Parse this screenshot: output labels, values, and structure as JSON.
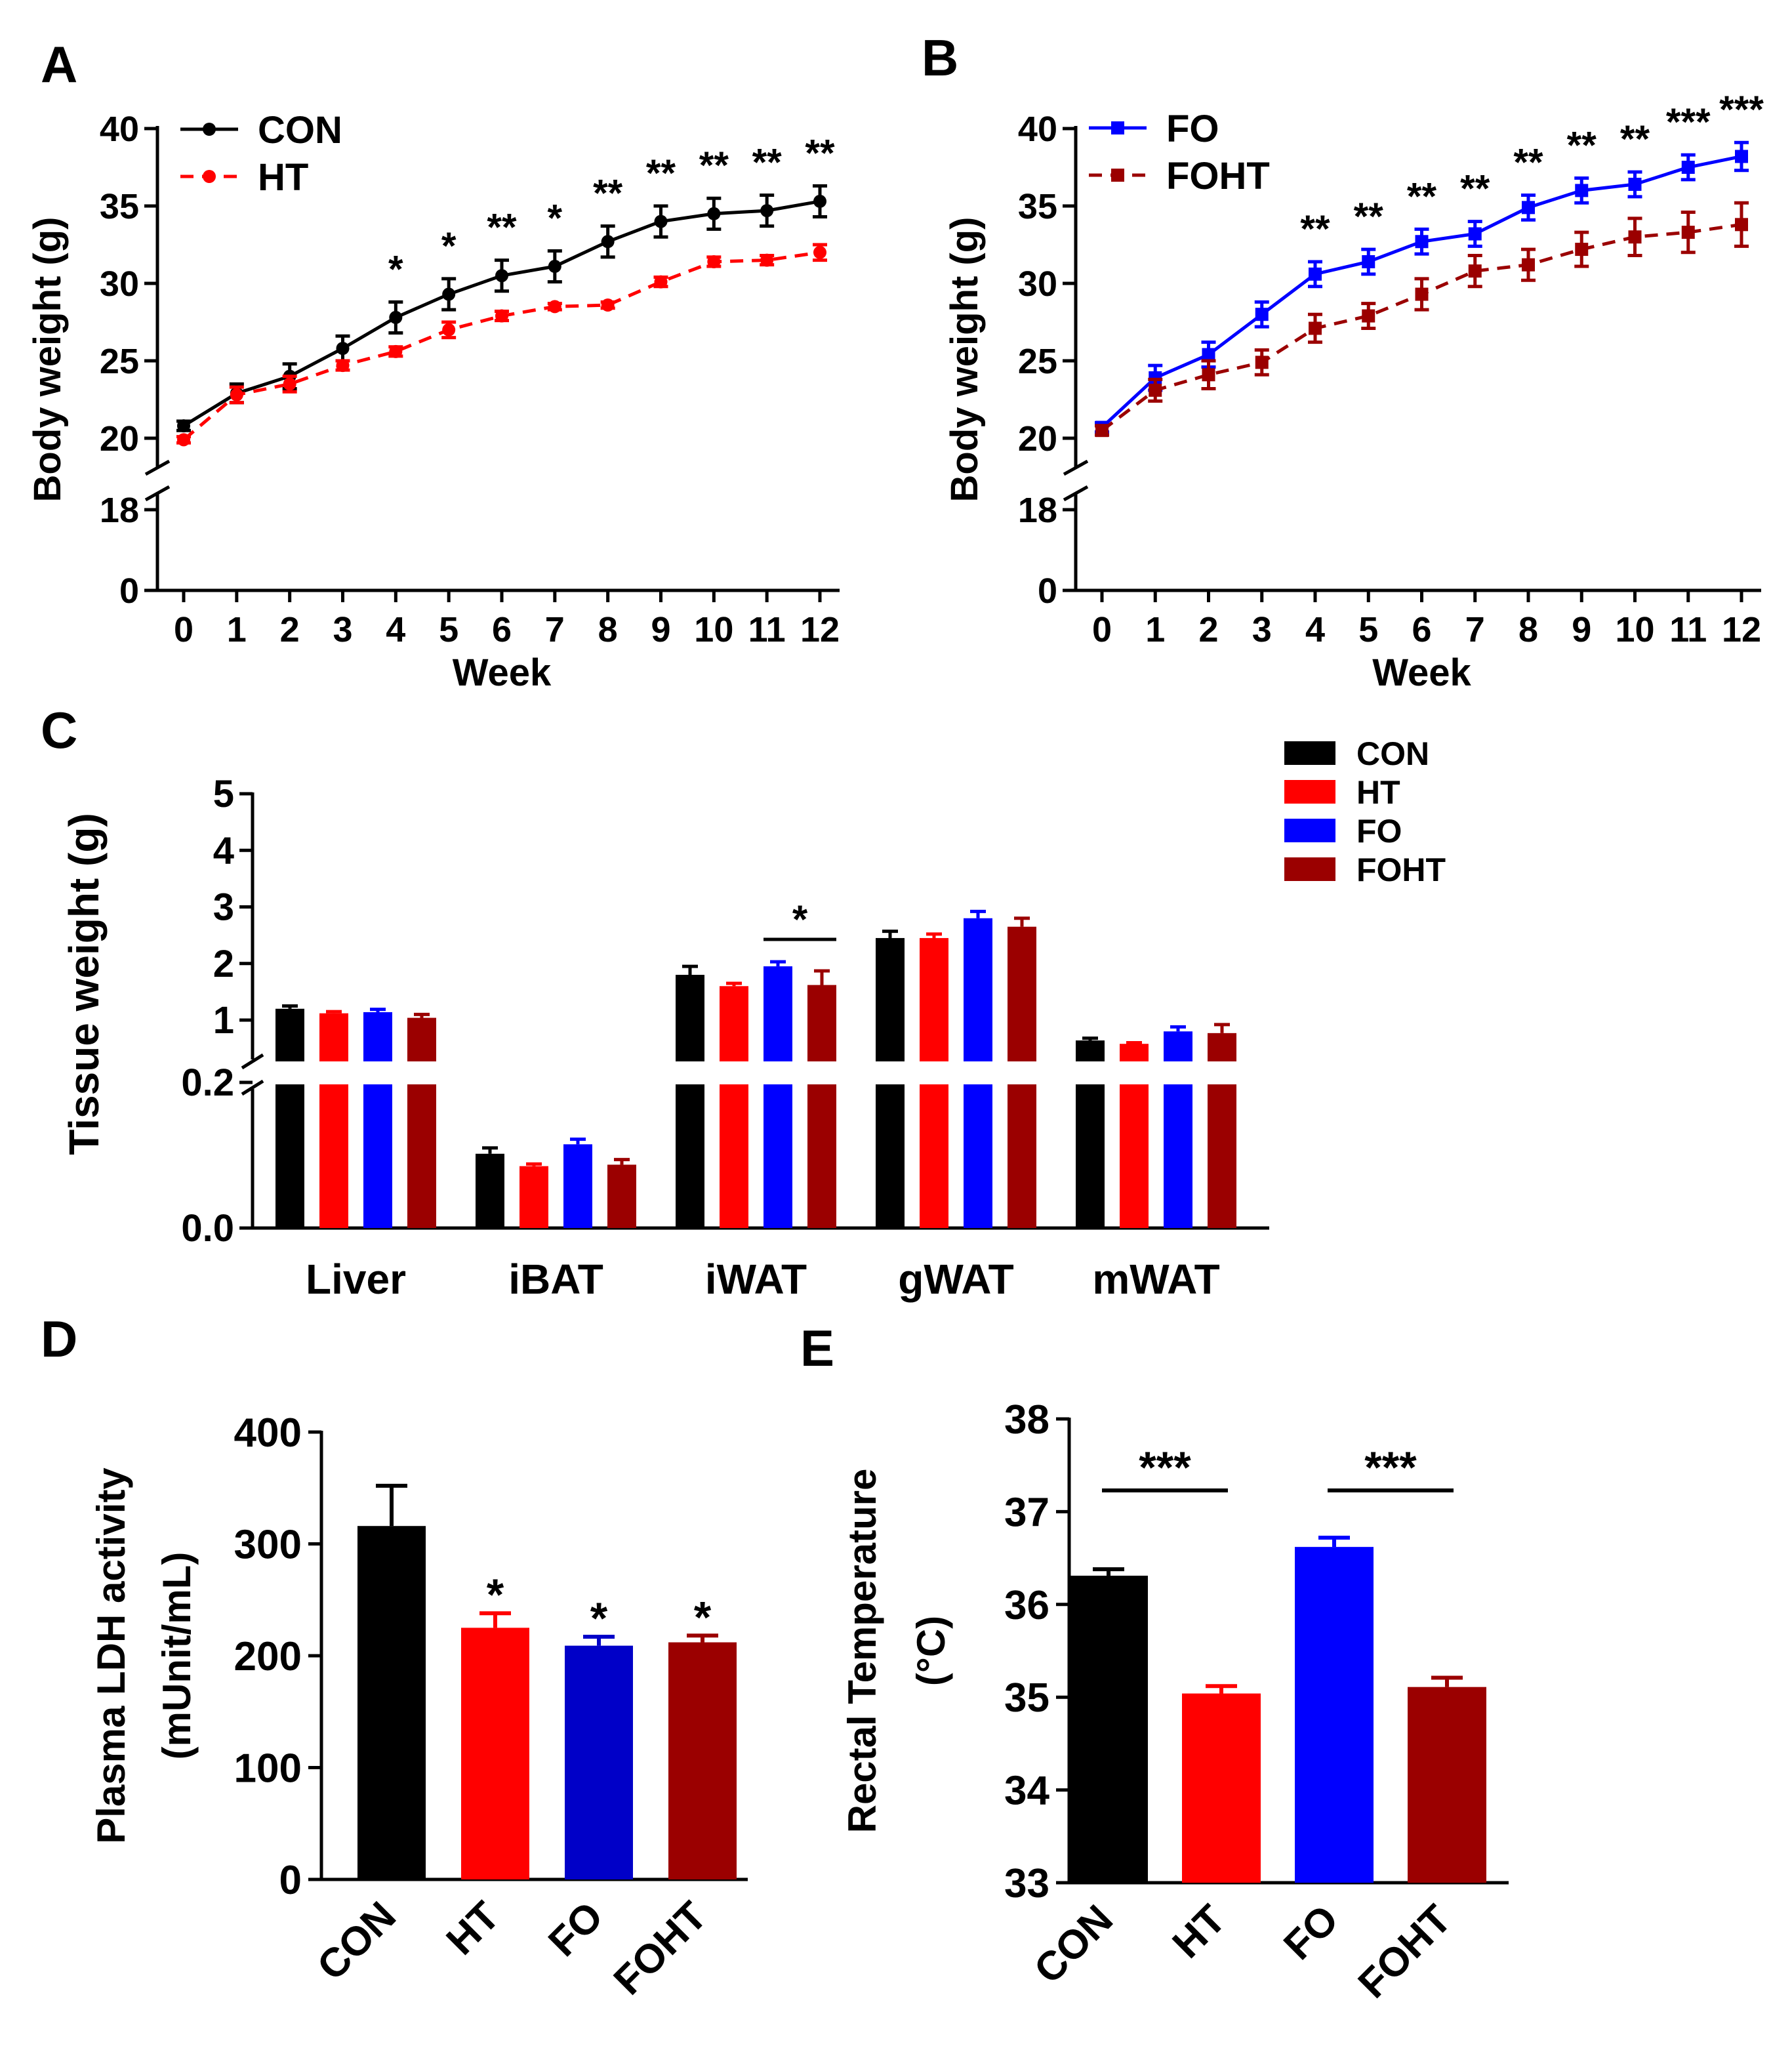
{
  "panel_labels": {
    "A": "A",
    "B": "B",
    "C": "C",
    "D": "D",
    "E": "E"
  },
  "colors": {
    "CON": "#000000",
    "HT": "#ff0000",
    "FO": "#0000ff",
    "FOHT": "#9b0000",
    "D_FO": "#0000c8"
  },
  "chart_data": [
    {
      "id": "A",
      "type": "line",
      "title": "",
      "xlabel": "Week",
      "ylabel": "Body weight (g)",
      "x": [
        0,
        1,
        2,
        3,
        4,
        5,
        6,
        7,
        8,
        9,
        10,
        11,
        12
      ],
      "yticks": [
        "0",
        "18",
        "20",
        "25",
        "30",
        "35",
        "40"
      ],
      "ylim": [
        0,
        40
      ],
      "axis_break": [
        18,
        20
      ],
      "series": [
        {
          "name": "CON",
          "color": "#000000",
          "dashed": false,
          "marker": "circle",
          "values": [
            20.8,
            22.9,
            24.0,
            25.8,
            27.8,
            29.3,
            30.5,
            31.1,
            32.7,
            34.0,
            34.5,
            34.7,
            35.3
          ],
          "errors": [
            0.3,
            0.6,
            0.8,
            0.8,
            1.0,
            1.0,
            1.0,
            1.0,
            1.0,
            1.0,
            1.0,
            1.0,
            1.0
          ]
        },
        {
          "name": "HT",
          "color": "#ff0000",
          "dashed": true,
          "marker": "circle",
          "values": [
            19.9,
            22.8,
            23.5,
            24.7,
            25.6,
            27.0,
            27.9,
            28.5,
            28.6,
            30.1,
            31.4,
            31.5,
            32.0
          ],
          "errors": [
            0.2,
            0.5,
            0.5,
            0.3,
            0.3,
            0.5,
            0.3,
            0.2,
            0.2,
            0.3,
            0.3,
            0.3,
            0.5
          ]
        }
      ],
      "annotations": [
        "",
        "",
        "",
        "",
        "*",
        "*",
        "**",
        "*",
        "**",
        "**",
        "**",
        "**",
        "**"
      ],
      "legend_position": "top-left"
    },
    {
      "id": "B",
      "type": "line",
      "title": "",
      "xlabel": "Week",
      "ylabel": "Body weight (g)",
      "x": [
        0,
        1,
        2,
        3,
        4,
        5,
        6,
        7,
        8,
        9,
        10,
        11,
        12
      ],
      "yticks": [
        "0",
        "18",
        "20",
        "25",
        "30",
        "35",
        "40"
      ],
      "ylim": [
        0,
        40
      ],
      "axis_break": [
        18,
        20
      ],
      "series": [
        {
          "name": "FO",
          "color": "#0000ff",
          "dashed": false,
          "marker": "square",
          "values": [
            20.7,
            23.9,
            25.4,
            28.0,
            30.6,
            31.4,
            32.7,
            33.2,
            34.9,
            36.0,
            36.4,
            37.5,
            38.2
          ],
          "errors": [
            0.3,
            0.8,
            0.8,
            0.8,
            0.8,
            0.8,
            0.8,
            0.8,
            0.8,
            0.8,
            0.8,
            0.8,
            0.9
          ]
        },
        {
          "name": "FOHT",
          "color": "#9b0000",
          "dashed": true,
          "marker": "square",
          "values": [
            20.5,
            23.1,
            24.1,
            24.9,
            27.1,
            27.9,
            29.3,
            30.8,
            31.2,
            32.2,
            33.0,
            33.3,
            33.8
          ],
          "errors": [
            0.3,
            0.7,
            0.9,
            0.8,
            0.9,
            0.8,
            1.0,
            1.0,
            1.0,
            1.1,
            1.2,
            1.3,
            1.4
          ]
        }
      ],
      "annotations": [
        "",
        "",
        "",
        "",
        "**",
        "**",
        "**",
        "**",
        "**",
        "**",
        "**",
        "***",
        "***"
      ],
      "legend_position": "top-left"
    },
    {
      "id": "C",
      "type": "bar",
      "title": "",
      "xlabel": "",
      "ylabel": "Tissue weight (g)",
      "categories": [
        "Liver",
        "iBAT",
        "iWAT",
        "gWAT",
        "mWAT"
      ],
      "lower_ticks": [
        "0.0",
        "0.2"
      ],
      "upper_ticks": [
        "1",
        "2",
        "3",
        "4",
        "5"
      ],
      "lower_range": [
        0,
        0.2
      ],
      "upper_range": [
        0.5,
        5
      ],
      "axis_break": [
        0.2,
        0.5
      ],
      "series": [
        {
          "name": "CON",
          "color": "#000000",
          "values": [
            1.2,
            0.102,
            1.8,
            2.45,
            0.64
          ],
          "errors": [
            0.05,
            0.008,
            0.15,
            0.12,
            0.04
          ]
        },
        {
          "name": "HT",
          "color": "#ff0000",
          "values": [
            1.12,
            0.085,
            1.6,
            2.45,
            0.58
          ],
          "errors": [
            0.03,
            0.003,
            0.05,
            0.07,
            0.02
          ]
        },
        {
          "name": "FO",
          "color": "#0000ff",
          "values": [
            1.14,
            0.115,
            1.95,
            2.8,
            0.8
          ],
          "errors": [
            0.05,
            0.007,
            0.08,
            0.12,
            0.08
          ]
        },
        {
          "name": "FOHT",
          "color": "#9b0000",
          "values": [
            1.04,
            0.087,
            1.62,
            2.65,
            0.77
          ],
          "errors": [
            0.06,
            0.007,
            0.25,
            0.15,
            0.15
          ]
        }
      ],
      "annotations": [
        {
          "category": "iWAT",
          "between": [
            "FO",
            "FOHT"
          ],
          "label": "*"
        }
      ],
      "legend_position": "top-right"
    },
    {
      "id": "D",
      "type": "bar",
      "title": "",
      "xlabel": "",
      "ylabel_line1": "Plasma LDH activity",
      "ylabel_line2": "(mUnit/mL)",
      "categories": [
        "CON",
        "HT",
        "FO",
        "FOHT"
      ],
      "yticks": [
        "0",
        "100",
        "200",
        "300",
        "400"
      ],
      "ylim": [
        0,
        400
      ],
      "values": [
        316,
        225,
        209,
        212
      ],
      "errors": [
        36,
        13,
        8,
        6
      ],
      "colors": [
        "#000000",
        "#ff0000",
        "#0000c8",
        "#9b0000"
      ],
      "annotations": [
        "",
        "*",
        "*",
        "*"
      ]
    },
    {
      "id": "E",
      "type": "bar",
      "title": "",
      "xlabel": "",
      "ylabel_line1": "Rectal Temperature",
      "ylabel_line2": "(°C)",
      "categories": [
        "CON",
        "HT",
        "FO",
        "FOHT"
      ],
      "yticks": [
        "33",
        "34",
        "35",
        "36",
        "37",
        "38"
      ],
      "ylim": [
        33,
        38
      ],
      "values": [
        36.31,
        35.04,
        36.62,
        35.11
      ],
      "errors": [
        0.07,
        0.08,
        0.1,
        0.1
      ],
      "colors": [
        "#000000",
        "#ff0000",
        "#0000ff",
        "#9b0000"
      ],
      "annotations": [
        {
          "between": [
            "CON",
            "HT"
          ],
          "label": "***"
        },
        {
          "between": [
            "FO",
            "FOHT"
          ],
          "label": "***"
        }
      ]
    }
  ]
}
